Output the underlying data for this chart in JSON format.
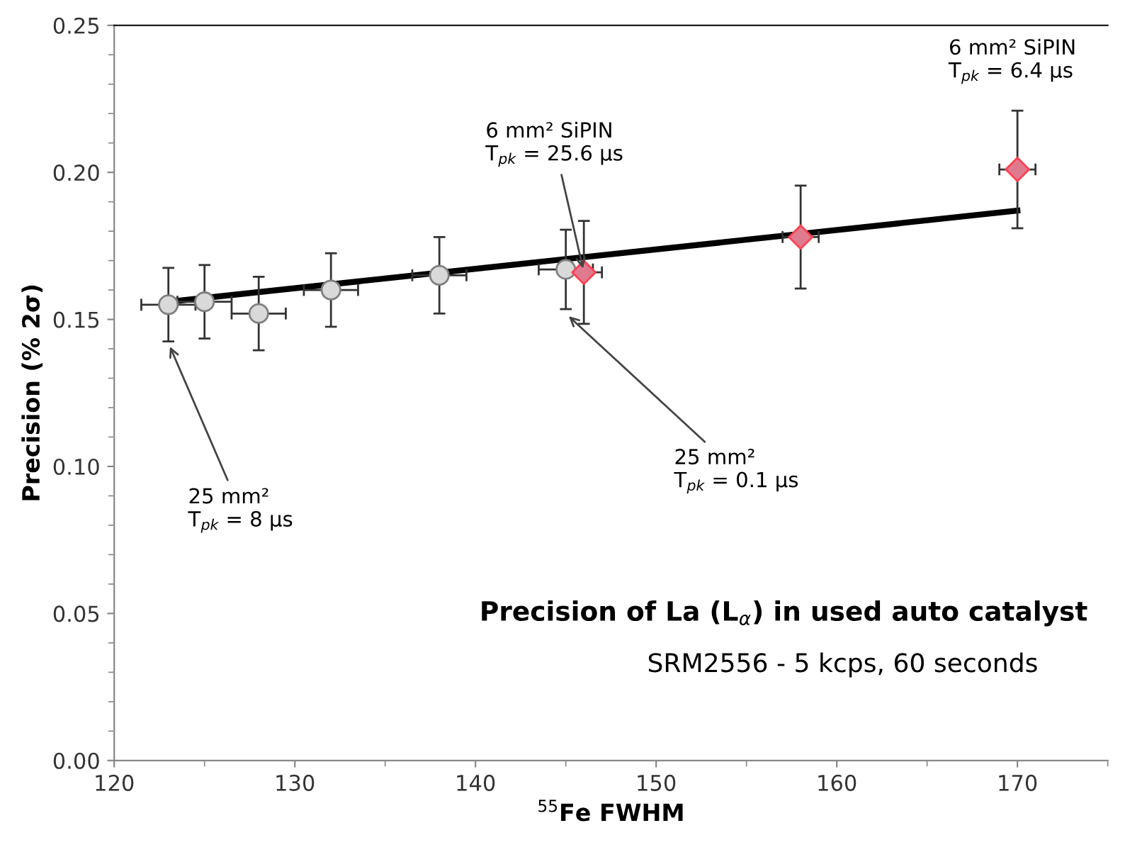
{
  "chart_data": {
    "type": "scatter",
    "xlabel": "$^{55}$Fe FWHM",
    "ylabel": "Precision (% 2σ)",
    "title": "Precision of La (L$_{α}$) in used auto catalyst",
    "subtitle": "SRM2556 - 5 kcps, 60 seconds",
    "xlim": [
      120,
      175
    ],
    "xticks": [
      120,
      130,
      140,
      150,
      160,
      170
    ],
    "ylim": [
      0,
      0.25
    ],
    "yticks": [
      {
        "value": 0,
        "label": "0.00"
      },
      0.05,
      {
        "value": 0.1,
        "label": "0.10"
      },
      0.15,
      {
        "value": 0.2,
        "label": "0.20"
      },
      0.25
    ],
    "grid": false,
    "legend": false,
    "series": [
      {
        "type": "line",
        "color": "#000000",
        "marker": "none",
        "line_style": "solid",
        "x": [
          123,
          170
        ],
        "values": [
          0.156,
          0.187
        ]
      },
      {
        "color": "#d9d9d9",
        "marker": "circle",
        "x": [
          123,
          125,
          128,
          132,
          138,
          145
        ],
        "values": [
          0.155,
          0.156,
          0.152,
          0.16,
          0.165,
          0.167
        ],
        "errors": [
          0.0125,
          0.0125,
          0.0125,
          0.0125,
          0.013,
          0.0135
        ],
        "xerrors": [
          1.5,
          1.5,
          1.5,
          1.5,
          1.5,
          1.5
        ]
      },
      {
        "color": "#e07b8f",
        "marker": "diamond",
        "x": [
          146,
          158,
          170
        ],
        "values": [
          0.166,
          0.178,
          0.201
        ],
        "errors": [
          0.0175,
          0.0175,
          0.02
        ],
        "xerrors": [
          1,
          1,
          1
        ]
      }
    ],
    "annotations": [
      {
        "text": "25 mm²\nT$_{pk}$ = 8 µs",
        "x": 123,
        "y": 0.142
      },
      {
        "text": "6 mm² SiPIN\nT$_{pk}$ = 25.6 µs",
        "x": 146,
        "y": 0.166
      },
      {
        "text": "25 mm²\nT$_{pk}$ = 0.1 µs",
        "x": 145,
        "y": 0.152
      },
      {
        "text": "6 mm² SiPIN\nT$_{pk}$ = 6.4 µs",
        "x": 170,
        "y": 0.221
      }
    ]
  }
}
